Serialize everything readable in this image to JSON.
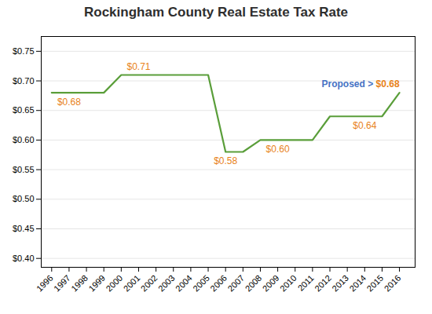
{
  "chart_data": {
    "type": "line",
    "title": "Rockingham County Real Estate Tax Rate",
    "x": [
      1996,
      1997,
      1998,
      1999,
      2000,
      2001,
      2002,
      2003,
      2004,
      2005,
      2006,
      2007,
      2008,
      2009,
      2010,
      2011,
      2012,
      2013,
      2014,
      2015,
      2016
    ],
    "values": [
      0.68,
      0.68,
      0.68,
      0.68,
      0.71,
      0.71,
      0.71,
      0.71,
      0.71,
      0.71,
      0.58,
      0.58,
      0.6,
      0.6,
      0.6,
      0.6,
      0.64,
      0.64,
      0.64,
      0.64,
      0.68
    ],
    "color": "#5a9e3a",
    "xlim": [
      1995.4,
      2016.9
    ],
    "xticks": [
      1996,
      1997,
      1998,
      1999,
      2000,
      2001,
      2002,
      2003,
      2004,
      2005,
      2006,
      2007,
      2008,
      2009,
      2010,
      2011,
      2012,
      2013,
      2014,
      2015,
      2016
    ],
    "ylim": [
      0.385,
      0.775
    ],
    "yticks": [
      {
        "value": 0.4,
        "label": "$0.40"
      },
      {
        "value": 0.45,
        "label": "$0.45"
      },
      {
        "value": 0.5,
        "label": "$0.50"
      },
      {
        "value": 0.55,
        "label": "$0.55"
      },
      {
        "value": 0.6,
        "label": "$0.60"
      },
      {
        "value": 0.65,
        "label": "$0.65"
      },
      {
        "value": 0.7,
        "label": "$0.70"
      },
      {
        "value": 0.75,
        "label": "$0.75"
      }
    ],
    "grid": "y",
    "annotations": [
      {
        "x": 1997,
        "y": 0.68,
        "label": "$0.68",
        "position": "below",
        "color": "#e8821a"
      },
      {
        "x": 2001,
        "y": 0.71,
        "label": "$0.71",
        "position": "above",
        "color": "#e8821a"
      },
      {
        "x": 2006,
        "y": 0.58,
        "label": "$0.58",
        "position": "below",
        "color": "#e8821a"
      },
      {
        "x": 2009,
        "y": 0.6,
        "label": "$0.60",
        "position": "below",
        "color": "#e8821a"
      },
      {
        "x": 2014,
        "y": 0.64,
        "label": "$0.64",
        "position": "below",
        "color": "#e8821a"
      },
      {
        "x": 2016,
        "y": 0.68,
        "position": "above",
        "parts": [
          {
            "label": "Proposed > ",
            "color": "#4472c4"
          },
          {
            "label": "$0.68",
            "color": "#e8821a"
          }
        ]
      }
    ]
  }
}
